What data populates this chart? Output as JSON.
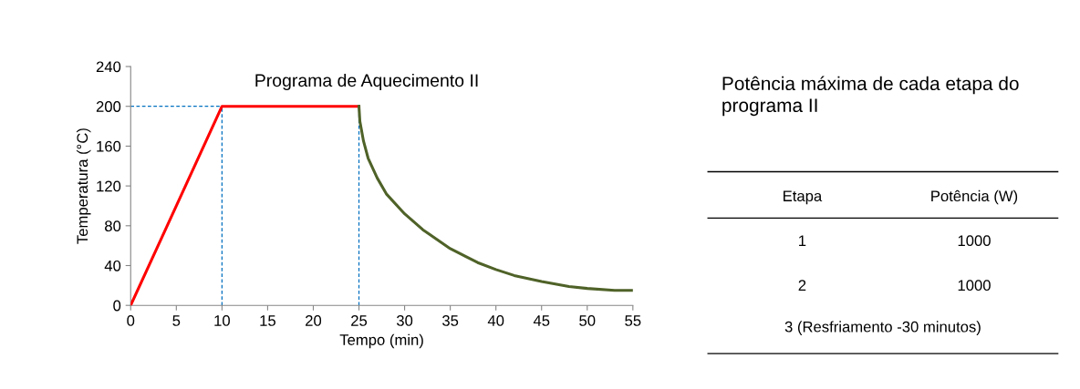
{
  "chart_data": [
    {
      "type": "line",
      "title": "Programa de Aquecimento II",
      "xlabel": "Tempo (min)",
      "ylabel": "Temperatura (°C)",
      "series": [
        {
          "color": "#ff0000",
          "x": [
            0,
            10,
            25
          ],
          "values": [
            0,
            200,
            200
          ]
        },
        {
          "color": "#4f6228",
          "x": [
            25,
            25.1,
            25.5,
            26,
            27,
            28,
            30,
            32,
            35,
            38,
            40,
            42,
            45,
            48,
            50,
            53,
            55
          ],
          "values": [
            200,
            185,
            165,
            148,
            128,
            112,
            92,
            76,
            57,
            43,
            36,
            30,
            24,
            19,
            17,
            15,
            15
          ]
        }
      ],
      "xlim": [
        0,
        55
      ],
      "xticks": [
        0,
        5,
        10,
        15,
        20,
        25,
        30,
        35,
        40,
        45,
        50,
        55
      ],
      "ylim": [
        0,
        240
      ],
      "yticks": [
        0,
        40,
        80,
        120,
        160,
        200,
        240
      ],
      "ref_lines": [
        {
          "axis": "y",
          "value": 200,
          "color": "#0070c0",
          "line_style": "dashed"
        },
        {
          "axis": "x",
          "value": 10,
          "color": "#0070c0",
          "line_style": "dashed"
        },
        {
          "axis": "x",
          "value": 25,
          "color": "#0070c0",
          "line_style": "dashed"
        }
      ],
      "grid": false,
      "legend": false,
      "marker": "none",
      "line_style": "solid"
    },
    {
      "type": "other",
      "title": "Potência máxima de cada etapa do programa II",
      "annotations": [
        "Etapa",
        "Potência (W)",
        "1",
        "1000",
        "2",
        "1000",
        "3 (Resfriamento -30 minutos)"
      ]
    }
  ]
}
